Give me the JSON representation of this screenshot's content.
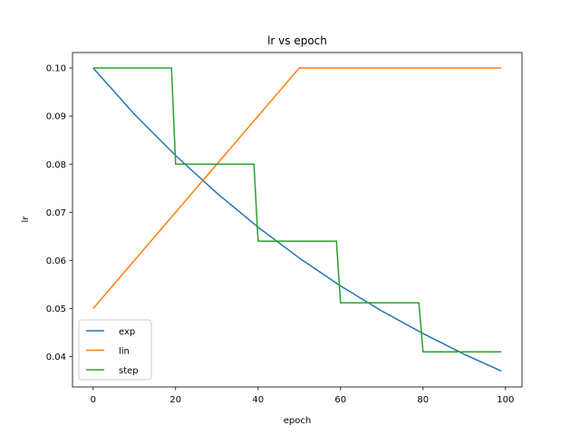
{
  "chart_data": {
    "type": "line",
    "title": "lr vs epoch",
    "xlabel": "epoch",
    "ylabel": "lr",
    "xlim": [
      -5,
      104
    ],
    "ylim": [
      0.0337,
      0.1032
    ],
    "xticks": [
      0,
      20,
      40,
      60,
      80,
      100
    ],
    "yticks": [
      0.04,
      0.05,
      0.06,
      0.07,
      0.08,
      0.09,
      0.1
    ],
    "ytick_labels": [
      "0.04",
      "0.05",
      "0.06",
      "0.07",
      "0.08",
      "0.09",
      "0.10"
    ],
    "grid": false,
    "legend_position": "lower-left",
    "series": [
      {
        "name": "exp",
        "color": "#1f77b4",
        "x": [
          0,
          10,
          20,
          30,
          40,
          50,
          60,
          70,
          80,
          90,
          99
        ],
        "y": [
          0.1,
          0.0904,
          0.0818,
          0.074,
          0.0669,
          0.0605,
          0.0547,
          0.0495,
          0.0448,
          0.0405,
          0.037
        ]
      },
      {
        "name": "lin",
        "color": "#ff7f0e",
        "x": [
          0,
          50,
          99
        ],
        "y": [
          0.05,
          0.1,
          0.1
        ]
      },
      {
        "name": "step",
        "color": "#2ca02c",
        "x": [
          0,
          19,
          20,
          39,
          40,
          59,
          60,
          79,
          80,
          99
        ],
        "y": [
          0.1,
          0.1,
          0.08,
          0.08,
          0.064,
          0.064,
          0.0512,
          0.0512,
          0.041,
          0.041
        ]
      }
    ]
  }
}
